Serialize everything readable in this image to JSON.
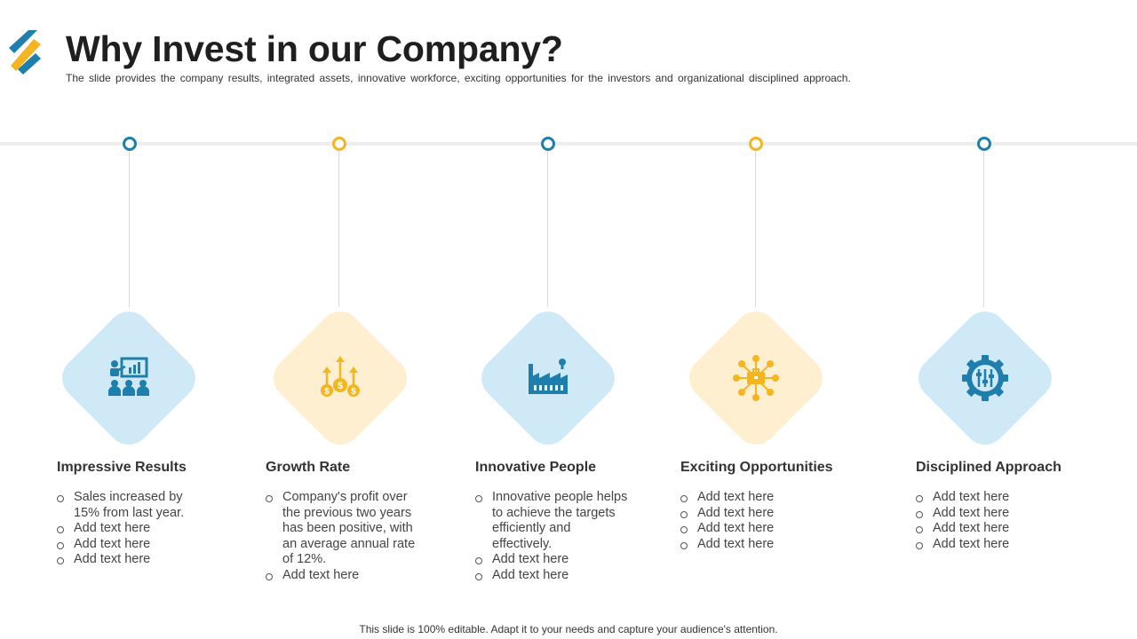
{
  "header": {
    "title": "Why Invest in our Company?",
    "subtitle": "The slide provides the company results, integrated assets, innovative workforce, exciting opportunities for the investors and organizational disciplined approach."
  },
  "colors": {
    "blue": "#1e7fac",
    "blue_light": "#cfe9f7",
    "yellow": "#f5b51e",
    "yellow_light": "#fdefcf",
    "logo_yellow": "#f5b51e"
  },
  "cards": [
    {
      "icon": "presentation-icon",
      "title": "Impressive Results",
      "bullets": [
        "Sales increased by 15% from last year.",
        "Add text here",
        "Add text here",
        "Add text here"
      ]
    },
    {
      "icon": "growth-coins-icon",
      "title": "Growth Rate",
      "bullets": [
        "Company's profit over the previous two years has been positive, with an average annual rate of 12%.",
        "Add text here"
      ]
    },
    {
      "icon": "factory-icon",
      "title": "Innovative People",
      "bullets": [
        "Innovative people helps to achieve the targets efficiently and effectively.",
        "Add text here",
        "Add text here"
      ]
    },
    {
      "icon": "network-briefcase-icon",
      "title": "Exciting Opportunities",
      "bullets": [
        "Add text here",
        "Add text here",
        "Add text here",
        "Add text here"
      ]
    },
    {
      "icon": "gear-sliders-icon",
      "title": "Disciplined Approach",
      "bullets": [
        "Add text here",
        "Add text here",
        "Add text here",
        "Add text here"
      ]
    }
  ],
  "footer": {
    "text": "This slide is 100% editable. Adapt it to your needs and capture your audience's attention."
  }
}
